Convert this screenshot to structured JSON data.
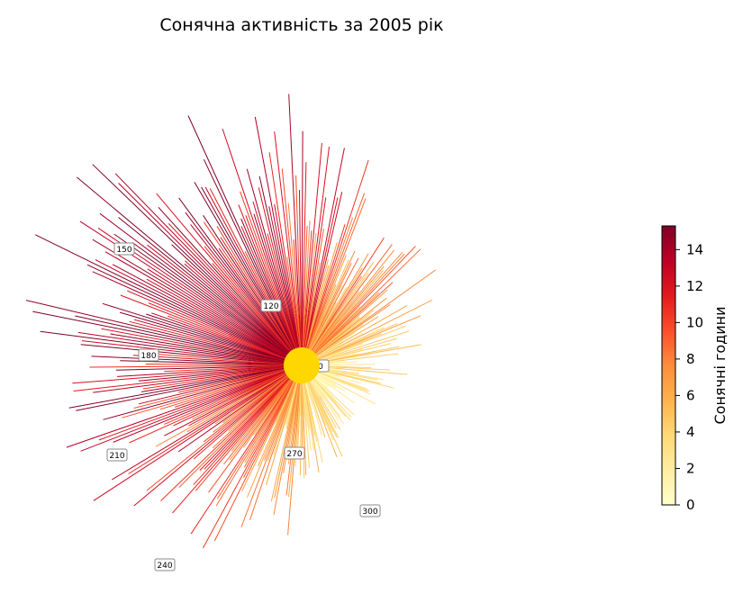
{
  "chart_data": {
    "type": "radial-burst",
    "title": "Сонячна активність за 2005 рік",
    "colorbar": {
      "label": "Сонячні години",
      "min": 0,
      "max": 15.3,
      "ticks": [
        "0",
        "2",
        "4",
        "6",
        "8",
        "10",
        "12",
        "14"
      ],
      "colormap": [
        "#ffffcc",
        "#ffeda0",
        "#fed976",
        "#feb24c",
        "#fd8d3c",
        "#fc4e2a",
        "#e31a1c",
        "#bd0026",
        "#800026"
      ]
    },
    "day_labels": [
      "120",
      "150",
      "180",
      "210",
      "240",
      "270",
      "300"
    ],
    "partially_hidden_label": "0",
    "sun_color": "#ffd700",
    "rays_note": "one ray per day of year; ray angle = day of year, ray length and color = sunshine hours",
    "days": 365
  }
}
